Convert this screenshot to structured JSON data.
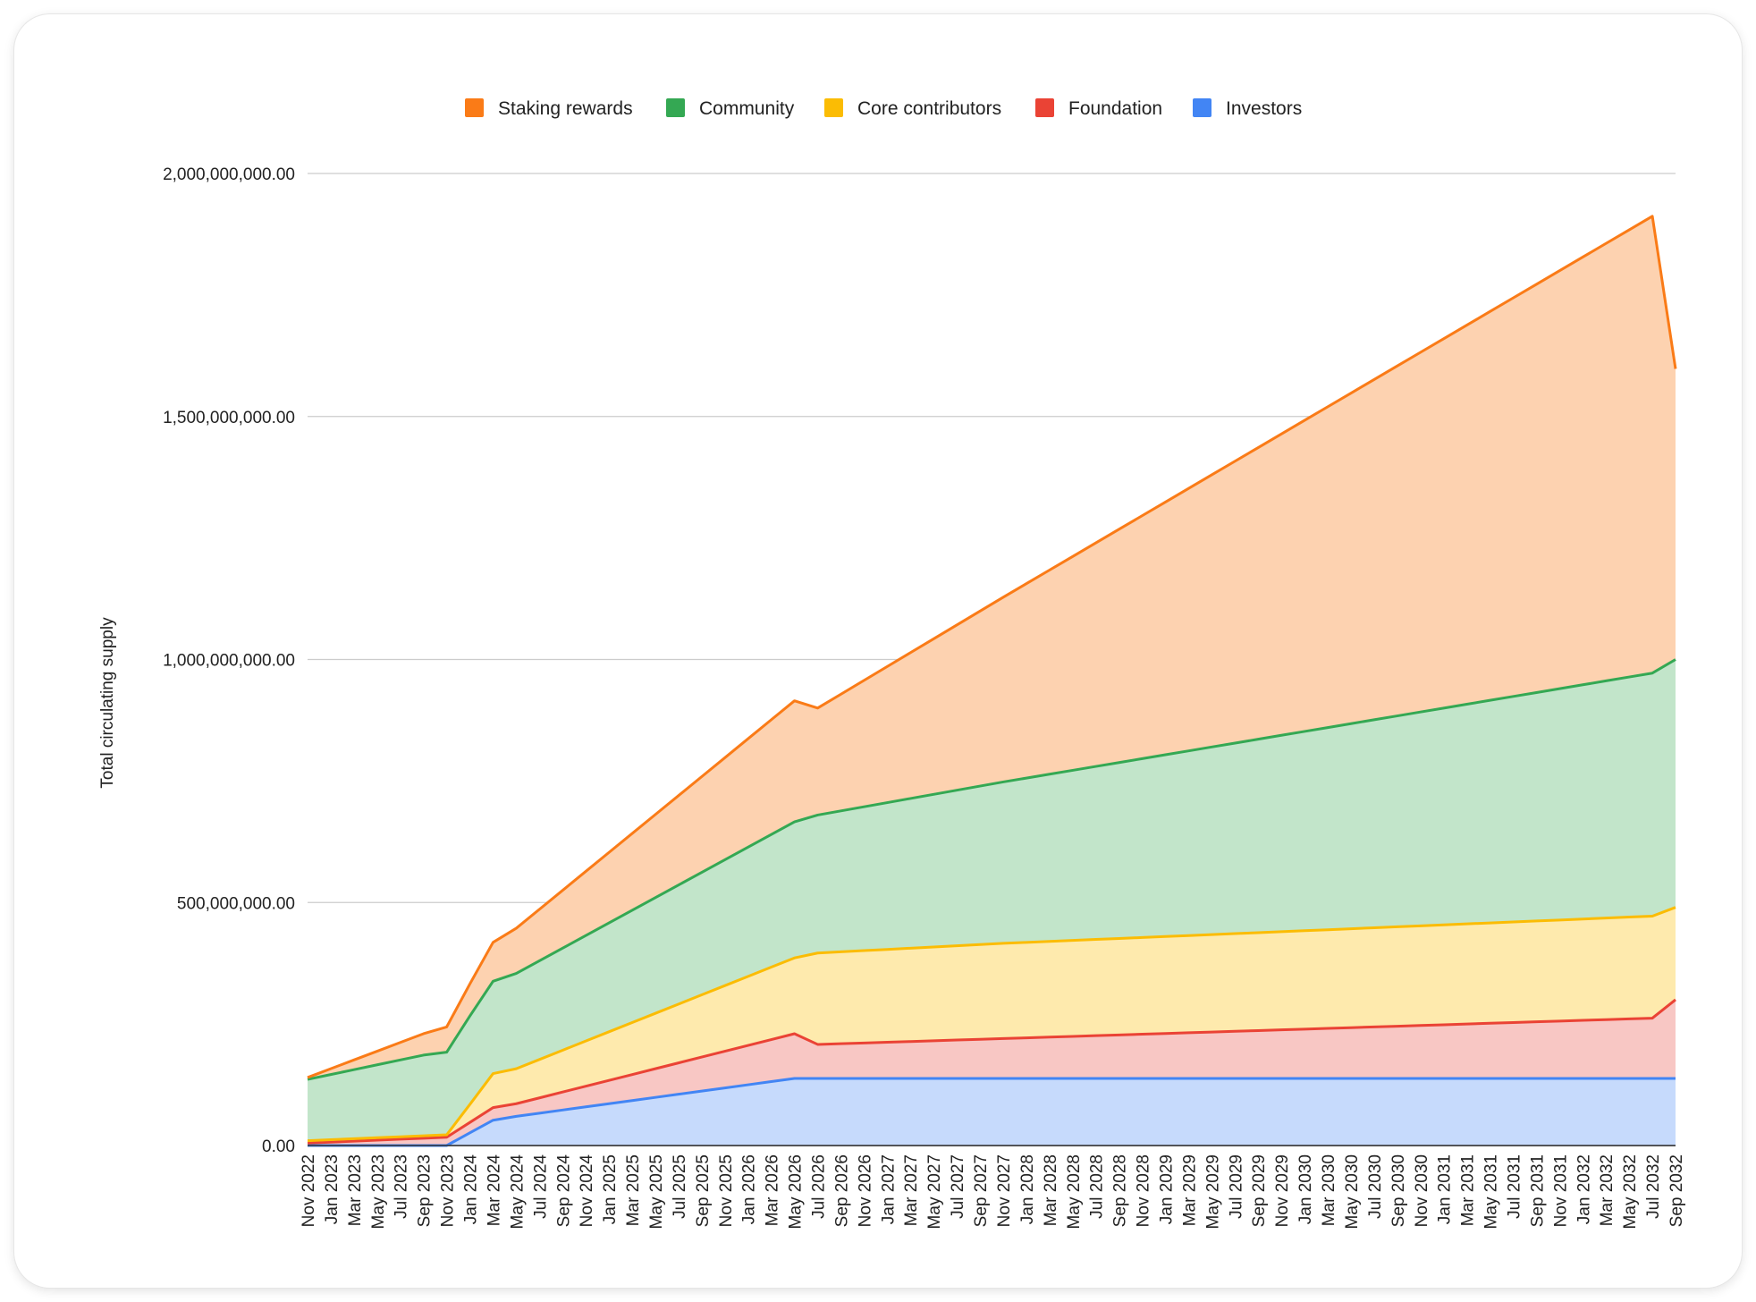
{
  "chart_data": {
    "type": "area",
    "stacked": true,
    "title": "",
    "xlabel": "",
    "ylabel": "Total circulating supply",
    "ylim": [
      0,
      2000000000
    ],
    "yticks": [
      "0.00",
      "500,000,000.00",
      "1,000,000,000.00",
      "1,500,000,000.00",
      "2,000,000,000.00"
    ],
    "grid": true,
    "legend_position": "top",
    "categories": [
      "Nov 2022",
      "Jan 2023",
      "Mar 2023",
      "May 2023",
      "Jul 2023",
      "Sep 2023",
      "Nov 2023",
      "Jan 2024",
      "Mar 2024",
      "May 2024",
      "Jul 2024",
      "Sep 2024",
      "Nov 2024",
      "Jan 2025",
      "Mar 2025",
      "May 2025",
      "Jul 2025",
      "Sep 2025",
      "Nov 2025",
      "Jan 2026",
      "Mar 2026",
      "May 2026",
      "Jul 2026",
      "Sep 2026",
      "Nov 2026",
      "Jan 2027",
      "Mar 2027",
      "May 2027",
      "Jul 2027",
      "Sep 2027",
      "Nov 2027",
      "Jan 2028",
      "Mar 2028",
      "May 2028",
      "Jul 2028",
      "Sep 2028",
      "Nov 2028",
      "Jan 2029",
      "Mar 2029",
      "May 2029",
      "Jul 2029",
      "Sep 2029",
      "Nov 2029",
      "Jan 2030",
      "Mar 2030",
      "May 2030",
      "Jul 2030",
      "Sep 2030",
      "Nov 2030",
      "Jan 2031",
      "Mar 2031",
      "May 2031",
      "Jul 2031",
      "Sep 2031",
      "Nov 2031",
      "Jan 2032",
      "Mar 2032",
      "May 2032",
      "Jul 2032",
      "Sep 2032"
    ],
    "series": [
      {
        "name": "Investors",
        "color": "#4285f4",
        "values": [
          0,
          0,
          0,
          0,
          0,
          0,
          0,
          26000000,
          52000000,
          60000000,
          66500000,
          73000000,
          79500000,
          86000000,
          92500000,
          99000000,
          105500000,
          112000000,
          118500000,
          125000000,
          131500000,
          138000000,
          138000000,
          138000000,
          138000000,
          138000000,
          138000000,
          138000000,
          138000000,
          138000000,
          138000000,
          138000000,
          138000000,
          138000000,
          138000000,
          138000000,
          138000000,
          138000000,
          138000000,
          138000000,
          138000000,
          138000000,
          138000000,
          138000000,
          138000000,
          138000000,
          138000000,
          138000000,
          138000000,
          138000000,
          138000000,
          138000000,
          138000000,
          138000000,
          138000000,
          138000000,
          138000000,
          138000000,
          138000000,
          138000000
        ]
      },
      {
        "name": "Foundation",
        "color": "#ea4335",
        "values": [
          5000000,
          7000000,
          9000000,
          11000000,
          13000000,
          15000000,
          17000000,
          21500000,
          26000000,
          26000000,
          31500000,
          37000000,
          42500000,
          48000000,
          53500000,
          59000000,
          64500000,
          70000000,
          75500000,
          81000000,
          86500000,
          92000000,
          70000000,
          71500000,
          73000000,
          74500000,
          76000000,
          77500000,
          79000000,
          80500000,
          82000000,
          83500000,
          85000000,
          86500000,
          88000000,
          89500000,
          91000000,
          92500000,
          94000000,
          95500000,
          97000000,
          98500000,
          100000000,
          101500000,
          103000000,
          104500000,
          106000000,
          107500000,
          109000000,
          110500000,
          112000000,
          113500000,
          115000000,
          116500000,
          118000000,
          119500000,
          121000000,
          122500000,
          124000000,
          162000000
        ]
      },
      {
        "name": "Core contributors",
        "color": "#fbbc04",
        "values": [
          5000000,
          5000000,
          5000000,
          5000000,
          5000000,
          5000000,
          5000000,
          37000000,
          70000000,
          72000000,
          79000000,
          86000000,
          93000000,
          100000000,
          107000000,
          114000000,
          121000000,
          128000000,
          135000000,
          142000000,
          149000000,
          156000000,
          188000000,
          189000000,
          190000000,
          191000000,
          192000000,
          193000000,
          194000000,
          195000000,
          196000000,
          196500000,
          197000000,
          197500000,
          198000000,
          198500000,
          199000000,
          199500000,
          200000000,
          200500000,
          201000000,
          201500000,
          202000000,
          202500000,
          203000000,
          203500000,
          204000000,
          204500000,
          205000000,
          205500000,
          206000000,
          206500000,
          207000000,
          207500000,
          208000000,
          208500000,
          209000000,
          209500000,
          210000000,
          190000000
        ]
      },
      {
        "name": "Community",
        "color": "#34a853",
        "values": [
          126000000,
          134000000,
          142000000,
          150000000,
          158000000,
          166000000,
          170000000,
          182000000,
          190000000,
          196000000,
          203000000,
          210000000,
          217000000,
          224000000,
          231000000,
          238000000,
          245000000,
          252000000,
          259000000,
          266000000,
          273000000,
          280000000,
          284000000,
          290000000,
          296000000,
          302000000,
          308000000,
          314000000,
          320000000,
          326000000,
          332000000,
          338000000,
          344000000,
          350000000,
          356000000,
          362000000,
          368000000,
          374000000,
          380000000,
          386000000,
          392000000,
          398000000,
          404000000,
          410000000,
          416000000,
          422000000,
          428000000,
          434000000,
          440000000,
          446000000,
          452000000,
          458000000,
          464000000,
          470000000,
          476000000,
          482000000,
          488000000,
          494000000,
          500000000,
          510000000
        ]
      },
      {
        "name": "Staking rewards",
        "color": "#fa7b17",
        "values": [
          4000000,
          12000000,
          20000000,
          28000000,
          36000000,
          44000000,
          52000000,
          66000000,
          80000000,
          93000000,
          106000000,
          119000000,
          132000000,
          145000000,
          158000000,
          171000000,
          184000000,
          197000000,
          210000000,
          223000000,
          236000000,
          249000000,
          220000000,
          240000000,
          260000000,
          280000000,
          300000000,
          320000000,
          340000000,
          360000000,
          380000000,
          400000000,
          420000000,
          440000000,
          460000000,
          480000000,
          500000000,
          520000000,
          540000000,
          560000000,
          580000000,
          600000000,
          620000000,
          640000000,
          660000000,
          680000000,
          700000000,
          720000000,
          740000000,
          760000000,
          780000000,
          800000000,
          820000000,
          840000000,
          860000000,
          880000000,
          900000000,
          920000000,
          940000000,
          598000000
        ]
      }
    ]
  }
}
